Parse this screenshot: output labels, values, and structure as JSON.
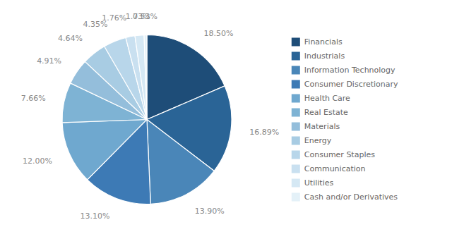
{
  "chart_data": {
    "type": "pie",
    "categories": [
      "Financials",
      "Industrials",
      "Information Technology",
      "Consumer Discretionary",
      "Health Care",
      "Real Estate",
      "Materials",
      "Energy",
      "Consumer Staples",
      "Communication",
      "Utilities",
      "Cash and/or Derivatives"
    ],
    "values": [
      18.5,
      16.89,
      13.9,
      13.1,
      12.0,
      7.66,
      4.91,
      4.64,
      4.35,
      1.76,
      1.73,
      0.53
    ],
    "value_labels": [
      "18.50%",
      "16.89%",
      "13.90%",
      "13.10%",
      "12.00%",
      "7.66%",
      "4.91%",
      "4.64%",
      "4.35%",
      "1.76%",
      "1.73%",
      "0.53%"
    ],
    "colors": [
      "#1e4d78",
      "#2a6496",
      "#4a86b8",
      "#3d7ab5",
      "#6fa8cf",
      "#7eb3d4",
      "#94bedb",
      "#a8cce3",
      "#b8d6ea",
      "#c9e0f0",
      "#d5e8f4",
      "#e4f1f8"
    ],
    "data_labels": true,
    "legend": "right"
  }
}
